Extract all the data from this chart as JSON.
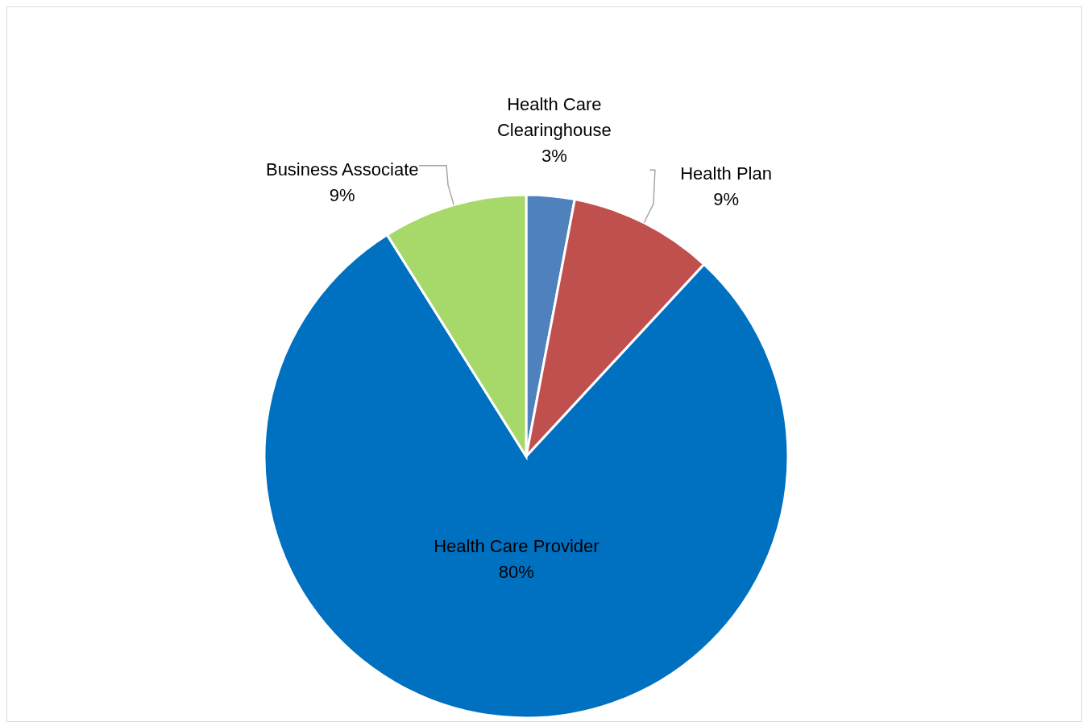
{
  "chart_data": {
    "type": "pie",
    "categories": [
      "Health Care Clearinghouse",
      "Health Plan",
      "Health Care Provider",
      "Business Associate"
    ],
    "values": [
      3,
      9,
      80,
      9
    ],
    "value_labels": [
      "3%",
      "9%",
      "80%",
      "9%"
    ],
    "colors": [
      "#4f81bd",
      "#c0504d",
      "#0070c0",
      "#a6d96a"
    ]
  }
}
